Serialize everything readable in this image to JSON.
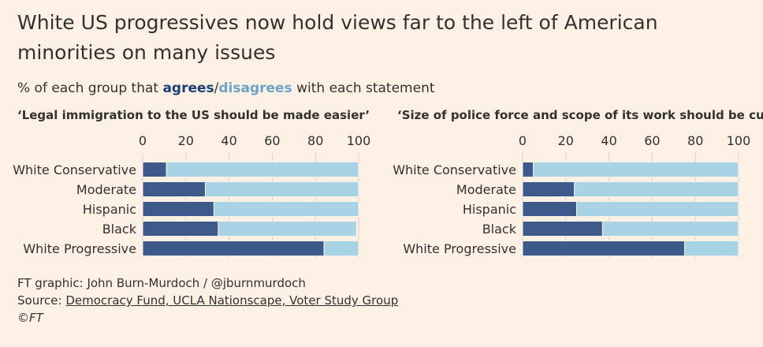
{
  "header": {
    "title": "White US progressives now hold views far to the left of American minorities on many issues",
    "subtitle_prefix": "% of each group that ",
    "subtitle_agrees": "agrees",
    "subtitle_slash": "/",
    "subtitle_disagrees": "disagrees",
    "subtitle_suffix": " with each statement"
  },
  "colors": {
    "agree": "#3d5a8a",
    "disagree": "#a8d3e4",
    "background": "#fdf1e6",
    "grid": "#d9cfc6",
    "text": "#33302e"
  },
  "chart_data": [
    {
      "type": "bar",
      "orientation": "horizontal",
      "stacked": true,
      "title": "‘Legal immigration to the US should be made easier’",
      "categories": [
        "White Conservative",
        "Moderate",
        "Hispanic",
        "Black",
        "White Progressive"
      ],
      "series": [
        {
          "name": "agrees",
          "values": [
            11,
            29,
            33,
            35,
            84
          ]
        },
        {
          "name": "disagrees",
          "values": [
            89,
            71,
            67,
            64,
            16
          ]
        }
      ],
      "xlim": [
        0,
        100
      ],
      "xticks": [
        0,
        20,
        40,
        60,
        80,
        100
      ],
      "xtick_labels": [
        "0",
        "20",
        "40",
        "60",
        "80",
        "100"
      ],
      "axis_position": "top",
      "grid": true
    },
    {
      "type": "bar",
      "orientation": "horizontal",
      "stacked": true,
      "title": "‘Size of police force and scope of its work should be cut’",
      "categories": [
        "White Conservative",
        "Moderate",
        "Hispanic",
        "Black",
        "White Progressive"
      ],
      "series": [
        {
          "name": "agrees",
          "values": [
            5,
            24,
            25,
            37,
            75
          ]
        },
        {
          "name": "disagrees",
          "values": [
            95,
            76,
            75,
            63,
            25
          ]
        }
      ],
      "xlim": [
        0,
        100
      ],
      "xticks": [
        0,
        20,
        40,
        60,
        80,
        100
      ],
      "xtick_labels": [
        "0",
        "20",
        "40",
        "60",
        "80",
        "100"
      ],
      "axis_position": "top",
      "grid": true
    }
  ],
  "footer": {
    "credit": "FT graphic: John Burn-Murdoch / @jburnmurdoch",
    "source_label": "Source: ",
    "source_text": "Democracy Fund, UCLA Nationscape, Voter Study Group",
    "copyright": "©FT"
  }
}
